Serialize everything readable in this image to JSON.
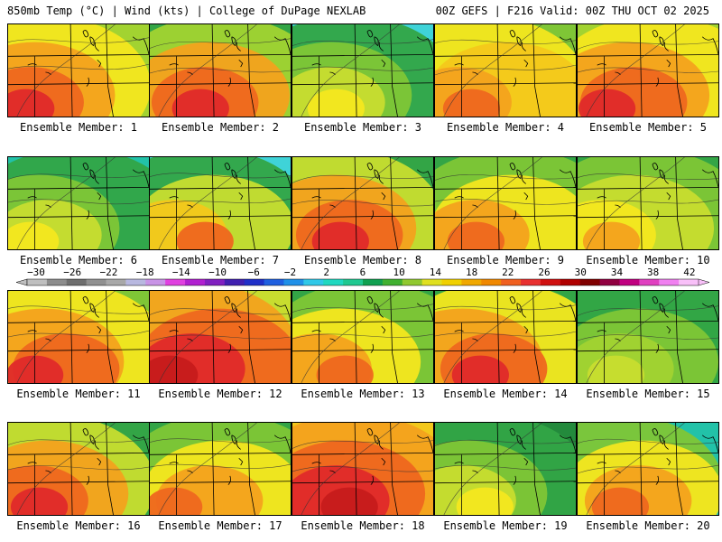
{
  "header": {
    "left": "850mb Temp (°C) | Wind (kts) | College of DuPage NEXLAB",
    "right": "00Z GEFS | F216 Valid: 00Z THU OCT 02 2025"
  },
  "colorbar": {
    "ticks": [
      "−30",
      "−26",
      "−22",
      "−18",
      "−14",
      "−10",
      "−6",
      "−2",
      "2",
      "6",
      "10",
      "14",
      "18",
      "22",
      "26",
      "30",
      "34",
      "38",
      "42"
    ],
    "colors": [
      "#bfbfbf",
      "#8c8c8c",
      "#6e6e6e",
      "#909090",
      "#a8a8a8",
      "#b8b8e0",
      "#c893e6",
      "#e040e0",
      "#b020d0",
      "#8020c0",
      "#4020b0",
      "#2030c8",
      "#2060e0",
      "#2090e8",
      "#30c8e8",
      "#20d8c0",
      "#20c890",
      "#10a050",
      "#40b030",
      "#90c830",
      "#e0e020",
      "#f0d000",
      "#f0a800",
      "#f08800",
      "#f06020",
      "#e83030",
      "#d01010",
      "#b00000",
      "#800000",
      "#900040",
      "#c00080",
      "#e040c0",
      "#f080f0",
      "#f8c0f8"
    ]
  },
  "panels": [
    {
      "label": "Ensemble Member: 1",
      "palette": [
        "#a2d331",
        "#f4e71f",
        "#f3a21d",
        "#ee671f",
        "#df2a2a"
      ]
    },
    {
      "label": "Ensemble Member: 2",
      "palette": [
        "#33a546",
        "#a2d331",
        "#f3a21d",
        "#ee671f",
        "#df2a2a"
      ]
    },
    {
      "label": "Ensemble Member: 3",
      "palette": [
        "#3fd3d8",
        "#33a546",
        "#7fc636",
        "#c8dd2f",
        "#f4e71f"
      ]
    },
    {
      "label": "Ensemble Member: 4",
      "palette": [
        "#7fc636",
        "#f4e71f",
        "#f3c81b",
        "#f3a21d",
        "#ee671f"
      ]
    },
    {
      "label": "Ensemble Member: 5",
      "palette": [
        "#a2d331",
        "#f4e71f",
        "#f3a21d",
        "#ee671f",
        "#df2a2a"
      ]
    },
    {
      "label": "Ensemble Member: 6",
      "palette": [
        "#22c2a8",
        "#33a546",
        "#7fc636",
        "#c8dd2f",
        "#f4e71f"
      ]
    },
    {
      "label": "Ensemble Member: 7",
      "palette": [
        "#3fd3d8",
        "#33a546",
        "#c8dd2f",
        "#f3c81b",
        "#ee671f"
      ]
    },
    {
      "label": "Ensemble Member: 8",
      "palette": [
        "#33a546",
        "#c8dd2f",
        "#f3a21d",
        "#ee671f",
        "#df2a2a"
      ]
    },
    {
      "label": "Ensemble Member: 9",
      "palette": [
        "#33a546",
        "#7fc636",
        "#f4e71f",
        "#f3a21d",
        "#ee671f"
      ]
    },
    {
      "label": "Ensemble Member: 10",
      "palette": [
        "#33a546",
        "#7fc636",
        "#c8dd2f",
        "#f4e71f",
        "#f3a21d"
      ]
    },
    {
      "label": "Ensemble Member: 11",
      "palette": [
        "#7fc636",
        "#f4e71f",
        "#f3a21d",
        "#ee671f",
        "#df2a2a"
      ]
    },
    {
      "label": "Ensemble Member: 12",
      "palette": [
        "#c8dd2f",
        "#f3a21d",
        "#ee671f",
        "#df2a2a",
        "#c61b1b"
      ]
    },
    {
      "label": "Ensemble Member: 13",
      "palette": [
        "#33a546",
        "#7fc636",
        "#f4e71f",
        "#f3a21d",
        "#ee671f"
      ]
    },
    {
      "label": "Ensemble Member: 14",
      "palette": [
        "#33a546",
        "#f4e71f",
        "#f3a21d",
        "#ee671f",
        "#df2a2a"
      ]
    },
    {
      "label": "Ensemble Member: 15",
      "palette": [
        "#33a546",
        "#33a546",
        "#7fc636",
        "#a2d331",
        "#c8dd2f"
      ]
    },
    {
      "label": "Ensemble Member: 16",
      "palette": [
        "#33a546",
        "#c8dd2f",
        "#f3a21d",
        "#ee671f",
        "#df2a2a"
      ]
    },
    {
      "label": "Ensemble Member: 17",
      "palette": [
        "#33a546",
        "#7fc636",
        "#f4e71f",
        "#f3a21d",
        "#ee671f"
      ]
    },
    {
      "label": "Ensemble Member: 18",
      "palette": [
        "#f3c81b",
        "#f3a21d",
        "#ee671f",
        "#df2a2a",
        "#c61b1b"
      ]
    },
    {
      "label": "Ensemble Member: 19",
      "palette": [
        "#238a3c",
        "#33a546",
        "#7fc636",
        "#c8dd2f",
        "#f4e71f"
      ]
    },
    {
      "label": "Ensemble Member: 20",
      "palette": [
        "#22c2a8",
        "#7fc636",
        "#f4e71f",
        "#f3a21d",
        "#ee671f"
      ]
    }
  ]
}
